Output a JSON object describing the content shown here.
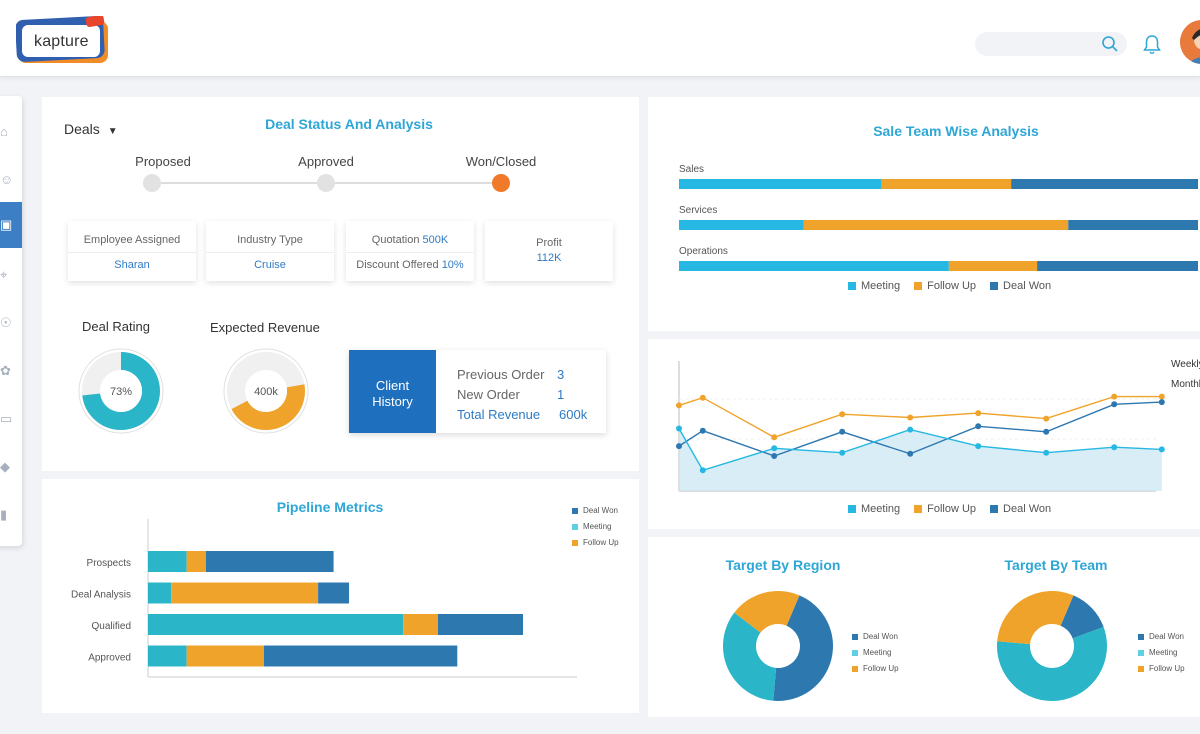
{
  "header": {
    "logo": "kapture",
    "search_placeholder": ""
  },
  "colors": {
    "meeting": "#26b8e2",
    "follow_up": "#f0a32a",
    "deal_won": "#2e78b0",
    "teal": "#2bb5c8",
    "accent_orange": "#f07a2a"
  },
  "sidebar": {
    "items": [
      "home-icon",
      "user-icon",
      "building-icon",
      "tag-icon",
      "contact-icon",
      "gear-icon",
      "book-icon",
      "pin-icon",
      "doc-icon"
    ],
    "active_index": 2
  },
  "deals": {
    "selector": "Deals",
    "title": "Deal Status And Analysis",
    "stages": [
      "Proposed",
      "Approved",
      "Won/Closed"
    ],
    "current_stage": "Won/Closed",
    "employee_label": "Employee Assigned",
    "employee_value": "Sharan",
    "industry_label": "Industry Type",
    "industry_value": "Cruise",
    "quotation_label": "Quotation",
    "quotation_value": "500K",
    "discount_label": "Discount Offered",
    "discount_value": "10%",
    "profit_label": "Profit",
    "profit_value": "112K",
    "rating_label": "Deal Rating",
    "rating_value": "73%",
    "rating_fraction": 0.73,
    "revenue_label": "Expected Revenue",
    "revenue_value": "400k",
    "revenue_fraction": 0.45,
    "client_history": {
      "title_line1": "Client",
      "title_line2": "History",
      "prev_label": "Previous Order",
      "prev_value": "3",
      "new_label": "New Order",
      "new_value": "1",
      "total_label": "Total Revenue",
      "total_value": "600k"
    }
  },
  "pipeline": {
    "title": "Pipeline Metrics",
    "legend": [
      "Deal Won",
      "Meeting",
      "Follow Up"
    ],
    "chart_data": {
      "type": "bar",
      "categories": [
        "Prospects",
        "Deal Analysis",
        "Qualified",
        "Approved"
      ],
      "series": [
        {
          "name": "Meeting",
          "values": [
            10,
            6,
            66,
            10
          ]
        },
        {
          "name": "Follow Up",
          "values": [
            5,
            38,
            9,
            20
          ]
        },
        {
          "name": "Deal Won",
          "values": [
            33,
            8,
            22,
            50
          ]
        }
      ]
    }
  },
  "sale_team": {
    "title": "Sale Team Wise Analysis",
    "legend": [
      "Meeting",
      "Follow Up",
      "Deal Won"
    ],
    "chart_data": {
      "type": "bar",
      "categories": [
        "Sales",
        "Services",
        "Operations"
      ],
      "series": [
        {
          "name": "Meeting",
          "values": [
            39,
            24,
            52
          ]
        },
        {
          "name": "Follow Up",
          "values": [
            25,
            51,
            17
          ]
        },
        {
          "name": "Deal Won",
          "values": [
            36,
            25,
            31
          ]
        }
      ]
    }
  },
  "trend": {
    "side_labels": [
      "Weekly",
      "Monthly"
    ],
    "legend": [
      "Meeting",
      "Follow Up",
      "Deal Won"
    ],
    "chart_data": {
      "type": "line",
      "x": [
        1,
        2,
        3,
        4,
        5,
        6,
        7,
        8,
        9,
        10,
        11,
        12
      ],
      "series": [
        {
          "name": "Follow Up",
          "values": [
            76,
            83,
            null,
            47,
            null,
            68,
            65,
            69,
            64,
            null,
            84,
            84
          ]
        },
        {
          "name": "Deal Won",
          "values": [
            39,
            53,
            null,
            30,
            52,
            32,
            null,
            57,
            52,
            null,
            77,
            79
          ]
        },
        {
          "name": "Meeting",
          "values": [
            55,
            17,
            null,
            37,
            33,
            null,
            54,
            39,
            33,
            null,
            38,
            36
          ]
        }
      ],
      "meeting_points": [
        [
          0,
          55
        ],
        [
          0.35,
          17
        ],
        [
          1.4,
          37
        ],
        [
          2.4,
          33
        ],
        [
          3.4,
          54
        ],
        [
          4.4,
          39
        ],
        [
          5.4,
          33
        ],
        [
          6.4,
          38
        ],
        [
          7.1,
          36
        ]
      ],
      "followup_points": [
        [
          0,
          76
        ],
        [
          0.35,
          83
        ],
        [
          1.4,
          47
        ],
        [
          2.4,
          68
        ],
        [
          3.4,
          65
        ],
        [
          4.4,
          69
        ],
        [
          5.4,
          64
        ],
        [
          6.4,
          84
        ],
        [
          7.1,
          84
        ]
      ],
      "dealwon_points": [
        [
          0,
          39
        ],
        [
          0.35,
          53
        ],
        [
          1.4,
          30
        ],
        [
          2.4,
          52
        ],
        [
          3.4,
          32
        ],
        [
          4.4,
          57
        ],
        [
          5.4,
          52
        ],
        [
          6.4,
          77
        ],
        [
          7.1,
          79
        ]
      ]
    }
  },
  "region": {
    "title": "Target By Region",
    "legend": [
      "Deal Won",
      "Meeting",
      "Follow Up"
    ],
    "chart_data": {
      "type": "pie",
      "labels": [
        "Deal Won",
        "Meeting",
        "Follow Up"
      ],
      "values": [
        45,
        34,
        21
      ]
    }
  },
  "team": {
    "title": "Target By Team",
    "legend": [
      "Deal Won",
      "Meeting",
      "Follow Up"
    ],
    "chart_data": {
      "type": "pie",
      "labels": [
        "Deal Won",
        "Meeting",
        "Follow Up"
      ],
      "values": [
        13,
        57,
        30
      ]
    }
  }
}
